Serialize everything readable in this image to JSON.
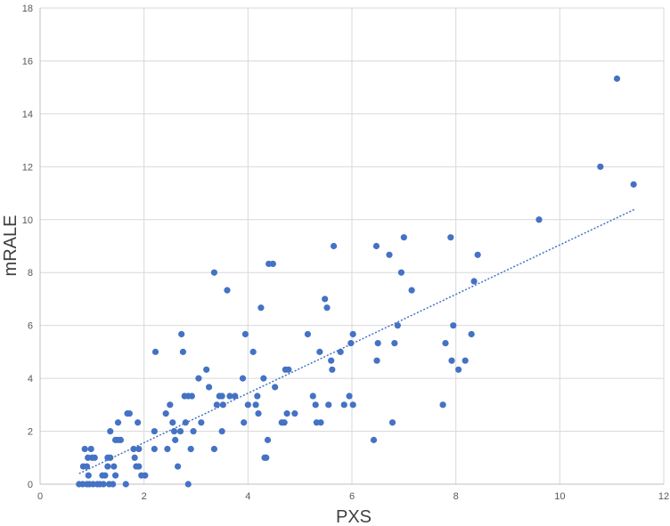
{
  "chart_data": {
    "type": "scatter",
    "title": "",
    "xlabel": "PXS",
    "ylabel": "mRALE",
    "xlim": [
      0,
      12
    ],
    "ylim": [
      0,
      18
    ],
    "x_ticks": [
      0,
      2,
      4,
      6,
      8,
      10,
      12
    ],
    "y_ticks": [
      0,
      2,
      4,
      6,
      8,
      10,
      12,
      14,
      16,
      18
    ],
    "grid": true,
    "legend": "none",
    "colors": {
      "points": "#4472c4",
      "trendline": "#4472c4",
      "grid": "#d9d9d9"
    },
    "trendline": {
      "type": "linear",
      "style": "dotted",
      "x": [
        0.75,
        11.45
      ],
      "y": [
        0.4,
        10.4
      ]
    },
    "series": [
      {
        "points": [
          [
            0.75,
            0
          ],
          [
            0.82,
            0
          ],
          [
            0.86,
            1.33
          ],
          [
            0.83,
            0.67
          ],
          [
            0.9,
            0.67
          ],
          [
            0.92,
            1.0
          ],
          [
            0.9,
            0
          ],
          [
            0.93,
            0.33
          ],
          [
            0.98,
            1.33
          ],
          [
            0.95,
            0
          ],
          [
            1.0,
            1.0
          ],
          [
            1.02,
            0
          ],
          [
            1.05,
            1.0
          ],
          [
            1.1,
            0
          ],
          [
            1.15,
            0
          ],
          [
            1.2,
            0.33
          ],
          [
            1.22,
            0
          ],
          [
            1.25,
            0.33
          ],
          [
            1.3,
            1.0
          ],
          [
            1.3,
            0.67
          ],
          [
            1.33,
            0
          ],
          [
            1.35,
            2.0
          ],
          [
            1.35,
            1.0
          ],
          [
            1.4,
            0
          ],
          [
            1.42,
            0.67
          ],
          [
            1.45,
            0.33
          ],
          [
            1.45,
            1.67
          ],
          [
            1.5,
            1.67
          ],
          [
            1.5,
            2.33
          ],
          [
            1.55,
            1.67
          ],
          [
            1.65,
            0
          ],
          [
            1.68,
            2.67
          ],
          [
            1.72,
            2.67
          ],
          [
            1.8,
            1.33
          ],
          [
            1.82,
            1.0
          ],
          [
            1.85,
            0.67
          ],
          [
            1.88,
            2.33
          ],
          [
            1.9,
            1.33
          ],
          [
            1.9,
            0.67
          ],
          [
            1.95,
            0.33
          ],
          [
            2.02,
            0.33
          ],
          [
            2.2,
            2.0
          ],
          [
            2.2,
            1.33
          ],
          [
            2.22,
            5.0
          ],
          [
            2.42,
            2.67
          ],
          [
            2.45,
            1.33
          ],
          [
            2.5,
            3.0
          ],
          [
            2.55,
            2.33
          ],
          [
            2.58,
            2.0
          ],
          [
            2.6,
            1.67
          ],
          [
            2.65,
            0.67
          ],
          [
            2.7,
            2.0
          ],
          [
            2.72,
            5.67
          ],
          [
            2.75,
            5.0
          ],
          [
            2.78,
            3.33
          ],
          [
            2.8,
            2.33
          ],
          [
            2.85,
            0
          ],
          [
            2.85,
            3.33
          ],
          [
            2.9,
            1.33
          ],
          [
            2.92,
            3.33
          ],
          [
            2.95,
            2.0
          ],
          [
            3.05,
            4.0
          ],
          [
            3.1,
            2.33
          ],
          [
            3.2,
            4.33
          ],
          [
            3.25,
            3.67
          ],
          [
            3.35,
            1.33
          ],
          [
            3.35,
            8.0
          ],
          [
            3.4,
            3.0
          ],
          [
            3.45,
            3.33
          ],
          [
            3.5,
            2.0
          ],
          [
            3.5,
            3.33
          ],
          [
            3.52,
            3.0
          ],
          [
            3.6,
            7.33
          ],
          [
            3.65,
            3.33
          ],
          [
            3.75,
            3.33
          ],
          [
            3.9,
            4.0
          ],
          [
            3.92,
            2.33
          ],
          [
            3.95,
            5.67
          ],
          [
            4.0,
            3.0
          ],
          [
            4.1,
            5.0
          ],
          [
            4.15,
            3.0
          ],
          [
            4.18,
            3.33
          ],
          [
            4.2,
            2.67
          ],
          [
            4.25,
            6.67
          ],
          [
            4.3,
            4.0
          ],
          [
            4.32,
            1.0
          ],
          [
            4.35,
            1.0
          ],
          [
            4.38,
            1.67
          ],
          [
            4.4,
            8.33
          ],
          [
            4.48,
            8.33
          ],
          [
            4.52,
            3.67
          ],
          [
            4.65,
            2.33
          ],
          [
            4.7,
            2.33
          ],
          [
            4.72,
            4.33
          ],
          [
            4.75,
            2.67
          ],
          [
            4.78,
            4.33
          ],
          [
            4.9,
            2.67
          ],
          [
            5.15,
            5.67
          ],
          [
            5.25,
            3.33
          ],
          [
            5.3,
            3.0
          ],
          [
            5.32,
            2.33
          ],
          [
            5.38,
            5.0
          ],
          [
            5.4,
            2.33
          ],
          [
            5.48,
            7.0
          ],
          [
            5.52,
            6.67
          ],
          [
            5.55,
            3.0
          ],
          [
            5.6,
            4.67
          ],
          [
            5.62,
            4.33
          ],
          [
            5.65,
            9.0
          ],
          [
            5.78,
            5.0
          ],
          [
            5.85,
            3.0
          ],
          [
            5.95,
            3.33
          ],
          [
            5.98,
            5.33
          ],
          [
            6.02,
            3.0
          ],
          [
            6.02,
            5.67
          ],
          [
            6.42,
            1.67
          ],
          [
            6.47,
            9.0
          ],
          [
            6.48,
            4.67
          ],
          [
            6.5,
            5.33
          ],
          [
            6.72,
            8.67
          ],
          [
            6.78,
            2.33
          ],
          [
            6.82,
            5.33
          ],
          [
            6.88,
            6.0
          ],
          [
            6.95,
            8.0
          ],
          [
            7.0,
            9.33
          ],
          [
            7.15,
            7.33
          ],
          [
            7.75,
            3.0
          ],
          [
            7.8,
            5.33
          ],
          [
            7.9,
            9.33
          ],
          [
            7.92,
            4.67
          ],
          [
            7.95,
            6.0
          ],
          [
            8.05,
            4.33
          ],
          [
            8.18,
            4.67
          ],
          [
            8.3,
            5.67
          ],
          [
            8.35,
            7.67
          ],
          [
            8.42,
            8.67
          ],
          [
            9.6,
            10.0
          ],
          [
            10.78,
            12.0
          ],
          [
            11.1,
            15.33
          ],
          [
            11.42,
            11.33
          ]
        ]
      }
    ]
  }
}
